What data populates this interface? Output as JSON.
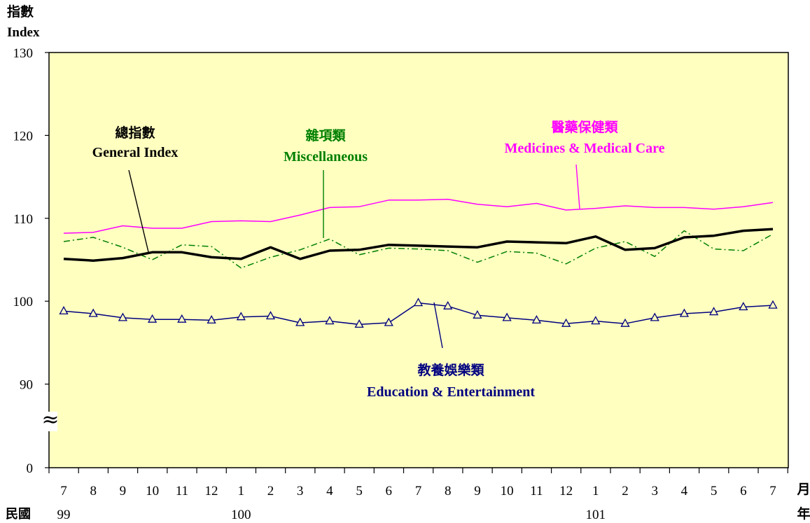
{
  "chart_data": {
    "type": "line",
    "ylabel_zh": "指數",
    "ylabel_en": "Index",
    "y_ticks": [
      "130",
      "120",
      "110",
      "100",
      "90",
      "0"
    ],
    "axis_break": "≈",
    "x_labels": [
      "7",
      "8",
      "9",
      "10",
      "11",
      "12",
      "1",
      "2",
      "3",
      "4",
      "5",
      "6",
      "7",
      "8",
      "9",
      "10",
      "11",
      "12",
      "1",
      "2",
      "3",
      "4",
      "5",
      "6",
      "7"
    ],
    "x_unit_month": "月",
    "x_unit_year": "年",
    "era_label": "民國",
    "years": [
      {
        "label": "99",
        "at": 0
      },
      {
        "label": "100",
        "at": 6
      },
      {
        "label": "101",
        "at": 18
      }
    ],
    "series": [
      {
        "id": "medicines",
        "name_zh": "醫藥保健類",
        "name_en": "Medicines & Medical Care",
        "color": "#ff00ff",
        "values": [
          108.2,
          108.3,
          109.1,
          108.8,
          108.8,
          109.6,
          109.7,
          109.6,
          110.4,
          111.3,
          111.4,
          112.2,
          112.2,
          112.3,
          111.7,
          111.4,
          111.8,
          111.0,
          111.2,
          111.5,
          111.3,
          111.3,
          111.1,
          111.4,
          111.9
        ]
      },
      {
        "id": "misc",
        "name_zh": "雜項類",
        "name_en": "Miscellaneous",
        "color": "#008000",
        "values": [
          107.2,
          107.7,
          106.5,
          105.0,
          106.8,
          106.6,
          104.0,
          105.3,
          106.2,
          107.5,
          105.6,
          106.4,
          106.3,
          106.1,
          104.7,
          106.0,
          105.8,
          104.5,
          106.4,
          107.2,
          105.4,
          108.5,
          106.3,
          106.1,
          108.1
        ]
      },
      {
        "id": "general",
        "name_zh": "總指數",
        "name_en": "General Index",
        "color": "#000000",
        "values": [
          105.1,
          104.9,
          105.2,
          105.9,
          105.9,
          105.3,
          105.1,
          106.5,
          105.1,
          106.1,
          106.2,
          106.8,
          106.7,
          106.6,
          106.5,
          107.2,
          107.1,
          107.0,
          107.8,
          106.2,
          106.4,
          107.7,
          107.9,
          108.5,
          108.7
        ]
      },
      {
        "id": "education",
        "name_zh": "教養娛樂類",
        "name_en": "Education & Entertainment",
        "color": "#000080",
        "marker": "triangle",
        "values": [
          98.8,
          98.5,
          98.0,
          97.8,
          97.8,
          97.7,
          98.1,
          98.2,
          97.4,
          97.6,
          97.2,
          97.4,
          99.8,
          99.4,
          98.3,
          98.0,
          97.7,
          97.3,
          97.6,
          97.3,
          98.0,
          98.5,
          98.7,
          99.3,
          99.5
        ]
      }
    ]
  }
}
